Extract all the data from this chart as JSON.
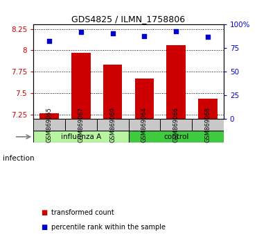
{
  "title": "GDS4825 / ILMN_1758806",
  "samples": [
    "GSM869065",
    "GSM869067",
    "GSM869069",
    "GSM869064",
    "GSM869066",
    "GSM869068"
  ],
  "red_values": [
    7.265,
    7.97,
    7.835,
    7.675,
    8.06,
    7.44
  ],
  "blue_values": [
    83,
    92,
    91,
    88,
    93,
    87
  ],
  "ylim_left": [
    7.2,
    8.3
  ],
  "ylim_right": [
    0,
    100
  ],
  "yticks_left": [
    7.25,
    7.5,
    7.75,
    8.0,
    8.25
  ],
  "yticks_right": [
    0,
    25,
    50,
    75,
    100
  ],
  "ytick_labels_left": [
    "7.25",
    "7.5",
    "7.75",
    "8",
    "8.25"
  ],
  "ytick_labels_right": [
    "0",
    "25",
    "50",
    "75",
    "100%"
  ],
  "bar_color": "#cc0000",
  "dot_color": "#0000cc",
  "bar_width": 0.6,
  "infection_label": "infection",
  "influenza_color": "#b8f5a0",
  "control_color": "#3ecc3e",
  "sample_box_color": "#c8c8c8",
  "legend_red_label": "transformed count",
  "legend_blue_label": "percentile rank within the sample"
}
